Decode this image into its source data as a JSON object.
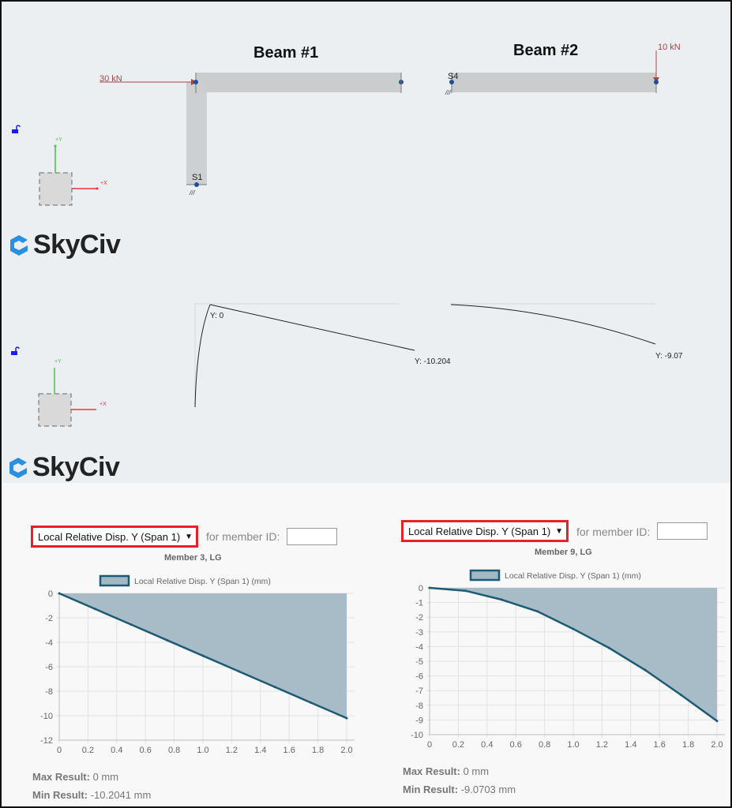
{
  "model": {
    "beam1_title": "Beam #1",
    "beam2_title": "Beam #2",
    "load1": "30 kN",
    "load2": "10 kN",
    "support1": "S1",
    "support2": "S4",
    "axis_y": "+Y",
    "axis_x": "+X",
    "logo_text": "SkyCiv",
    "deflect_label1": "Y: 0",
    "deflect_label2": "Y: -10.204",
    "deflect_label3": "Y: -9.07",
    "colors": {
      "member": "#cbcccd",
      "node": "#1f4e9a",
      "load": "#a04848",
      "y_axis": "#4cbf4c",
      "x_axis": "#ee3333",
      "lock": "#1a1aff"
    },
    "icons": [
      "lock-open-icon",
      "skyciv-logo-icon"
    ]
  },
  "panels": [
    {
      "select_value": "Local Relative Disp. Y (Span 1)",
      "for_label": "for member ID:",
      "member_id": "",
      "member_label": "Member 3, LG",
      "max_label": "Max Result:",
      "max_value": "0 mm",
      "min_label": "Min Result:",
      "min_value": "-10.2041 mm"
    },
    {
      "select_value": "Local Relative Disp. Y (Span 1)",
      "for_label": "for member ID:",
      "member_id": "",
      "member_label": "Member 9, LG",
      "max_label": "Max Result:",
      "max_value": "0 mm",
      "min_label": "Min Result:",
      "min_value": "-9.0703 mm"
    }
  ],
  "chart_data": [
    {
      "type": "area",
      "legend": "Local Relative Disp. Y (Span 1) (mm)",
      "x": [
        0,
        0.25,
        0.5,
        0.75,
        1.0,
        1.25,
        1.5,
        1.75,
        2.0
      ],
      "values": [
        0,
        -1.276,
        -2.551,
        -3.827,
        -5.102,
        -6.378,
        -7.653,
        -8.929,
        -10.2041
      ],
      "xlim": [
        0,
        2.0
      ],
      "ylim": [
        -12,
        0
      ],
      "xticks": [
        "0",
        "0.2",
        "0.4",
        "0.6",
        "0.8",
        "1.0",
        "1.2",
        "1.4",
        "1.6",
        "1.8",
        "2.0"
      ],
      "yticks": [
        "0",
        "-2",
        "-4",
        "-6",
        "-8",
        "-10",
        "-12"
      ],
      "grid": true,
      "legend_position": "top",
      "color": "#1d5a73",
      "fill": "#a2b8c3"
    },
    {
      "type": "area",
      "legend": "Local Relative Disp. Y (Span 1) (mm)",
      "x": [
        0,
        0.25,
        0.5,
        0.75,
        1.0,
        1.25,
        1.5,
        1.75,
        2.0
      ],
      "values": [
        0,
        -0.2,
        -0.8,
        -1.6,
        -2.8,
        -4.1,
        -5.6,
        -7.3,
        -9.0703
      ],
      "xlim": [
        0,
        2.0
      ],
      "ylim": [
        -10,
        0
      ],
      "xticks": [
        "0",
        "0.2",
        "0.4",
        "0.6",
        "0.8",
        "1.0",
        "1.2",
        "1.4",
        "1.6",
        "1.8",
        "2.0"
      ],
      "yticks": [
        "0",
        "-1",
        "-2",
        "-3",
        "-4",
        "-5",
        "-6",
        "-7",
        "-8",
        "-9",
        "-10"
      ],
      "grid": true,
      "legend_position": "top",
      "color": "#1d5a73",
      "fill": "#a2b8c3"
    }
  ]
}
